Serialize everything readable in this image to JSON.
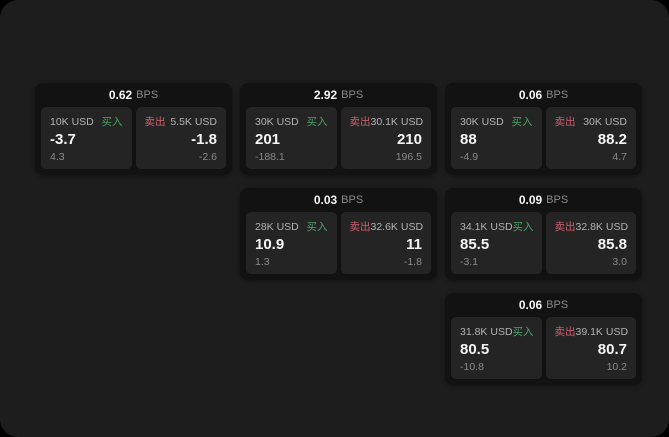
{
  "colors": {
    "window_bg": "#1d1d1d",
    "card_bg": "#121212",
    "panel_bg": "#242424",
    "buy": "#4da167",
    "sell": "#ce5f6e"
  },
  "labels": {
    "bps_unit": "BPS",
    "buy": "买入",
    "sell": "卖出"
  },
  "cards": [
    {
      "row": 1,
      "col": 1,
      "bps": "0.62",
      "buy": {
        "amount": "10K USD",
        "price": "-3.7",
        "delta": "4.3"
      },
      "sell": {
        "amount": "5.5K USD",
        "price": "-1.8",
        "delta": "-2.6"
      }
    },
    {
      "row": 1,
      "col": 2,
      "bps": "2.92",
      "buy": {
        "amount": "30K USD",
        "price": "201",
        "delta": "-188.1"
      },
      "sell": {
        "amount": "30.1K USD",
        "price": "210",
        "delta": "196.5"
      }
    },
    {
      "row": 1,
      "col": 3,
      "bps": "0.06",
      "buy": {
        "amount": "30K USD",
        "price": "88",
        "delta": "-4.9"
      },
      "sell": {
        "amount": "30K USD",
        "price": "88.2",
        "delta": "4.7"
      }
    },
    {
      "row": 2,
      "col": 2,
      "bps": "0.03",
      "buy": {
        "amount": "28K USD",
        "price": "10.9",
        "delta": "1.3"
      },
      "sell": {
        "amount": "32.6K USD",
        "price": "11",
        "delta": "-1.8"
      }
    },
    {
      "row": 2,
      "col": 3,
      "bps": "0.09",
      "buy": {
        "amount": "34.1K USD",
        "price": "85.5",
        "delta": "-3.1"
      },
      "sell": {
        "amount": "32.8K USD",
        "price": "85.8",
        "delta": "3.0"
      }
    },
    {
      "row": 3,
      "col": 3,
      "bps": "0.06",
      "buy": {
        "amount": "31.8K USD",
        "price": "80.5",
        "delta": "-10.8"
      },
      "sell": {
        "amount": "39.1K USD",
        "price": "80.7",
        "delta": "10.2"
      }
    }
  ]
}
